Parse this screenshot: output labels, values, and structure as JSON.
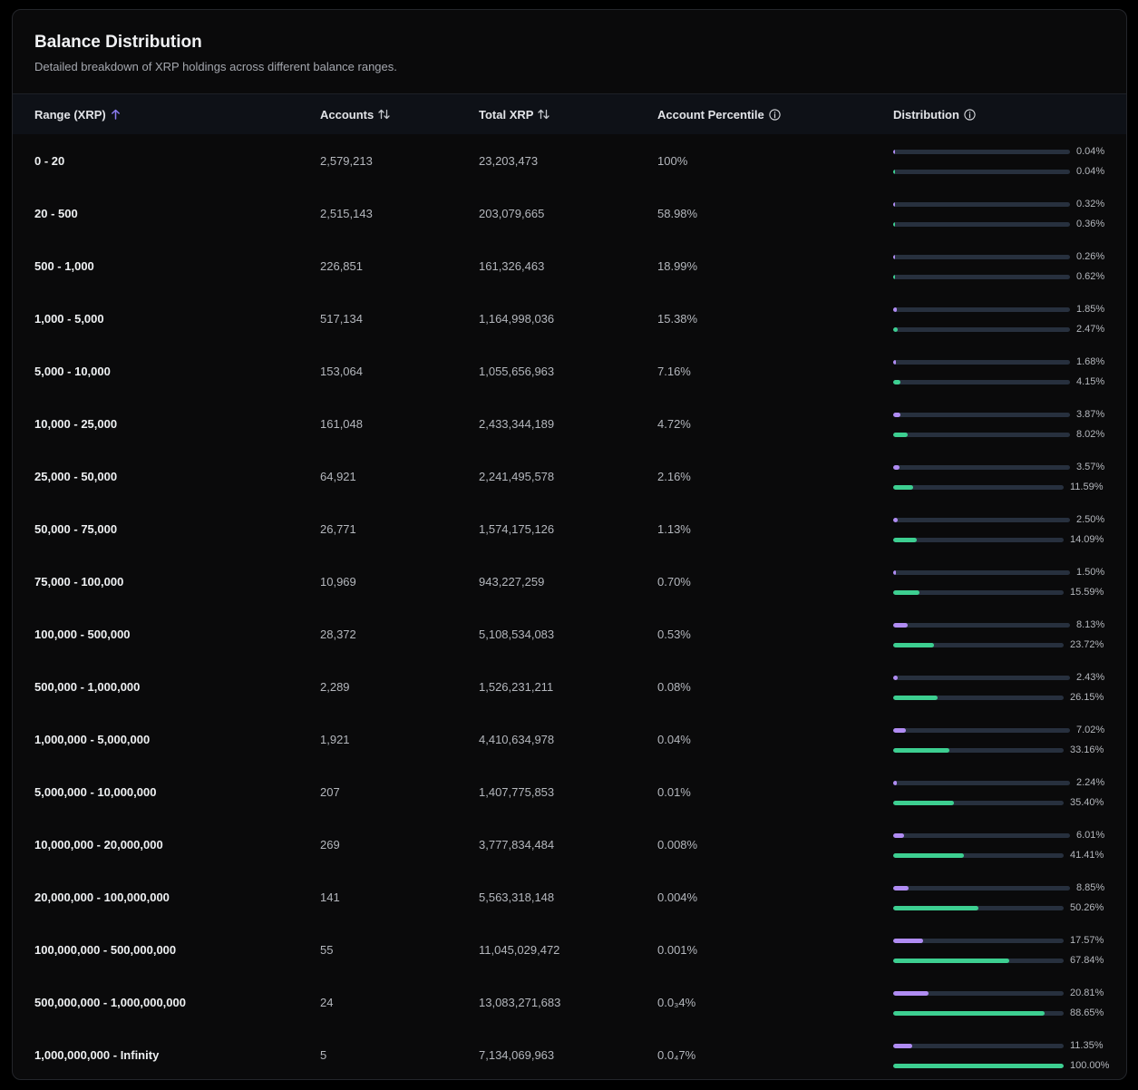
{
  "header": {
    "title": "Balance Distribution",
    "subtitle": "Detailed breakdown of XRP holdings across different balance ranges."
  },
  "columns": {
    "range": "Range (XRP)",
    "accounts": "Accounts",
    "total_xrp": "Total XRP",
    "account_percentile": "Account Percentile",
    "distribution": "Distribution"
  },
  "icons": {
    "sort_active": "arrow-up-icon",
    "sort_inactive": "sort-updown-icon",
    "info": "info-circle-icon"
  },
  "colors": {
    "accounts_bar": "#b08cf3",
    "xrp_bar": "#3dcf91",
    "track": "#27303e",
    "sort_accent": "#8c7cf2"
  },
  "rows": [
    {
      "range": "0 - 20",
      "accounts": "2,579,213",
      "total_xrp": "23,203,473",
      "percentile": "100%",
      "accounts_pct_label": "0.04%",
      "accounts_pct": 0.04,
      "xrp_pct_label": "0.04%",
      "xrp_pct": 0.04
    },
    {
      "range": "20 - 500",
      "accounts": "2,515,143",
      "total_xrp": "203,079,665",
      "percentile": "58.98%",
      "accounts_pct_label": "0.32%",
      "accounts_pct": 0.32,
      "xrp_pct_label": "0.36%",
      "xrp_pct": 0.36
    },
    {
      "range": "500 - 1,000",
      "accounts": "226,851",
      "total_xrp": "161,326,463",
      "percentile": "18.99%",
      "accounts_pct_label": "0.26%",
      "accounts_pct": 0.26,
      "xrp_pct_label": "0.62%",
      "xrp_pct": 0.62
    },
    {
      "range": "1,000 - 5,000",
      "accounts": "517,134",
      "total_xrp": "1,164,998,036",
      "percentile": "15.38%",
      "accounts_pct_label": "1.85%",
      "accounts_pct": 1.85,
      "xrp_pct_label": "2.47%",
      "xrp_pct": 2.47
    },
    {
      "range": "5,000 - 10,000",
      "accounts": "153,064",
      "total_xrp": "1,055,656,963",
      "percentile": "7.16%",
      "accounts_pct_label": "1.68%",
      "accounts_pct": 1.68,
      "xrp_pct_label": "4.15%",
      "xrp_pct": 4.15
    },
    {
      "range": "10,000 - 25,000",
      "accounts": "161,048",
      "total_xrp": "2,433,344,189",
      "percentile": "4.72%",
      "accounts_pct_label": "3.87%",
      "accounts_pct": 3.87,
      "xrp_pct_label": "8.02%",
      "xrp_pct": 8.02
    },
    {
      "range": "25,000 - 50,000",
      "accounts": "64,921",
      "total_xrp": "2,241,495,578",
      "percentile": "2.16%",
      "accounts_pct_label": "3.57%",
      "accounts_pct": 3.57,
      "xrp_pct_label": "11.59%",
      "xrp_pct": 11.59
    },
    {
      "range": "50,000 - 75,000",
      "accounts": "26,771",
      "total_xrp": "1,574,175,126",
      "percentile": "1.13%",
      "accounts_pct_label": "2.50%",
      "accounts_pct": 2.5,
      "xrp_pct_label": "14.09%",
      "xrp_pct": 14.09
    },
    {
      "range": "75,000 - 100,000",
      "accounts": "10,969",
      "total_xrp": "943,227,259",
      "percentile": "0.70%",
      "accounts_pct_label": "1.50%",
      "accounts_pct": 1.5,
      "xrp_pct_label": "15.59%",
      "xrp_pct": 15.59
    },
    {
      "range": "100,000 - 500,000",
      "accounts": "28,372",
      "total_xrp": "5,108,534,083",
      "percentile": "0.53%",
      "accounts_pct_label": "8.13%",
      "accounts_pct": 8.13,
      "xrp_pct_label": "23.72%",
      "xrp_pct": 23.72
    },
    {
      "range": "500,000 - 1,000,000",
      "accounts": "2,289",
      "total_xrp": "1,526,231,211",
      "percentile": "0.08%",
      "accounts_pct_label": "2.43%",
      "accounts_pct": 2.43,
      "xrp_pct_label": "26.15%",
      "xrp_pct": 26.15
    },
    {
      "range": "1,000,000 - 5,000,000",
      "accounts": "1,921",
      "total_xrp": "4,410,634,978",
      "percentile": "0.04%",
      "accounts_pct_label": "7.02%",
      "accounts_pct": 7.02,
      "xrp_pct_label": "33.16%",
      "xrp_pct": 33.16
    },
    {
      "range": "5,000,000 - 10,000,000",
      "accounts": "207",
      "total_xrp": "1,407,775,853",
      "percentile": "0.01%",
      "accounts_pct_label": "2.24%",
      "accounts_pct": 2.24,
      "xrp_pct_label": "35.40%",
      "xrp_pct": 35.4
    },
    {
      "range": "10,000,000 - 20,000,000",
      "accounts": "269",
      "total_xrp": "3,777,834,484",
      "percentile": "0.008%",
      "accounts_pct_label": "6.01%",
      "accounts_pct": 6.01,
      "xrp_pct_label": "41.41%",
      "xrp_pct": 41.41
    },
    {
      "range": "20,000,000 - 100,000,000",
      "accounts": "141",
      "total_xrp": "5,563,318,148",
      "percentile": "0.004%",
      "accounts_pct_label": "8.85%",
      "accounts_pct": 8.85,
      "xrp_pct_label": "50.26%",
      "xrp_pct": 50.26
    },
    {
      "range": "100,000,000 - 500,000,000",
      "accounts": "55",
      "total_xrp": "11,045,029,472",
      "percentile": "0.001%",
      "accounts_pct_label": "17.57%",
      "accounts_pct": 17.57,
      "xrp_pct_label": "67.84%",
      "xrp_pct": 67.84
    },
    {
      "range": "500,000,000 - 1,000,000,000",
      "accounts": "24",
      "total_xrp": "13,083,271,683",
      "percentile": "0.0₃4%",
      "accounts_pct_label": "20.81%",
      "accounts_pct": 20.81,
      "xrp_pct_label": "88.65%",
      "xrp_pct": 88.65
    },
    {
      "range": "1,000,000,000 - Infinity",
      "accounts": "5",
      "total_xrp": "7,134,069,963",
      "percentile": "0.0₄7%",
      "accounts_pct_label": "11.35%",
      "accounts_pct": 11.35,
      "xrp_pct_label": "100.00%",
      "xrp_pct": 100.0
    }
  ]
}
